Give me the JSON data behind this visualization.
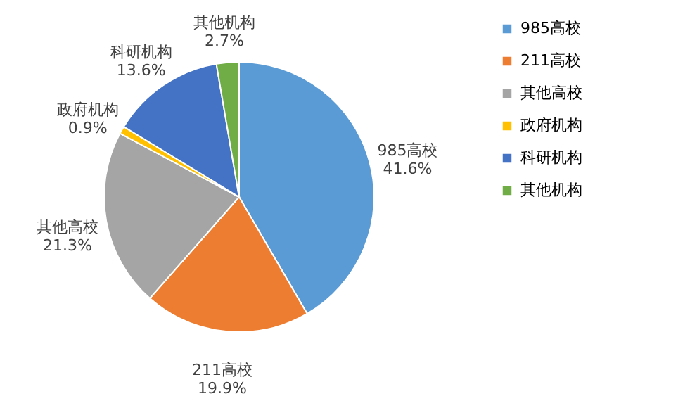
{
  "chart_data": {
    "type": "pie",
    "categories": [
      "985高校",
      "211高校",
      "其他高校",
      "政府机构",
      "科研机构",
      "其他机构"
    ],
    "values": [
      41.6,
      19.9,
      21.3,
      0.9,
      13.6,
      2.7
    ],
    "colors": [
      "#5b9bd5",
      "#ed7d31",
      "#a5a5a5",
      "#ffc000",
      "#4472c4",
      "#70ad47"
    ],
    "value_labels": [
      "41.6%",
      "19.9%",
      "21.3%",
      "0.9%",
      "13.6%",
      "2.7%"
    ],
    "legend": "right"
  }
}
